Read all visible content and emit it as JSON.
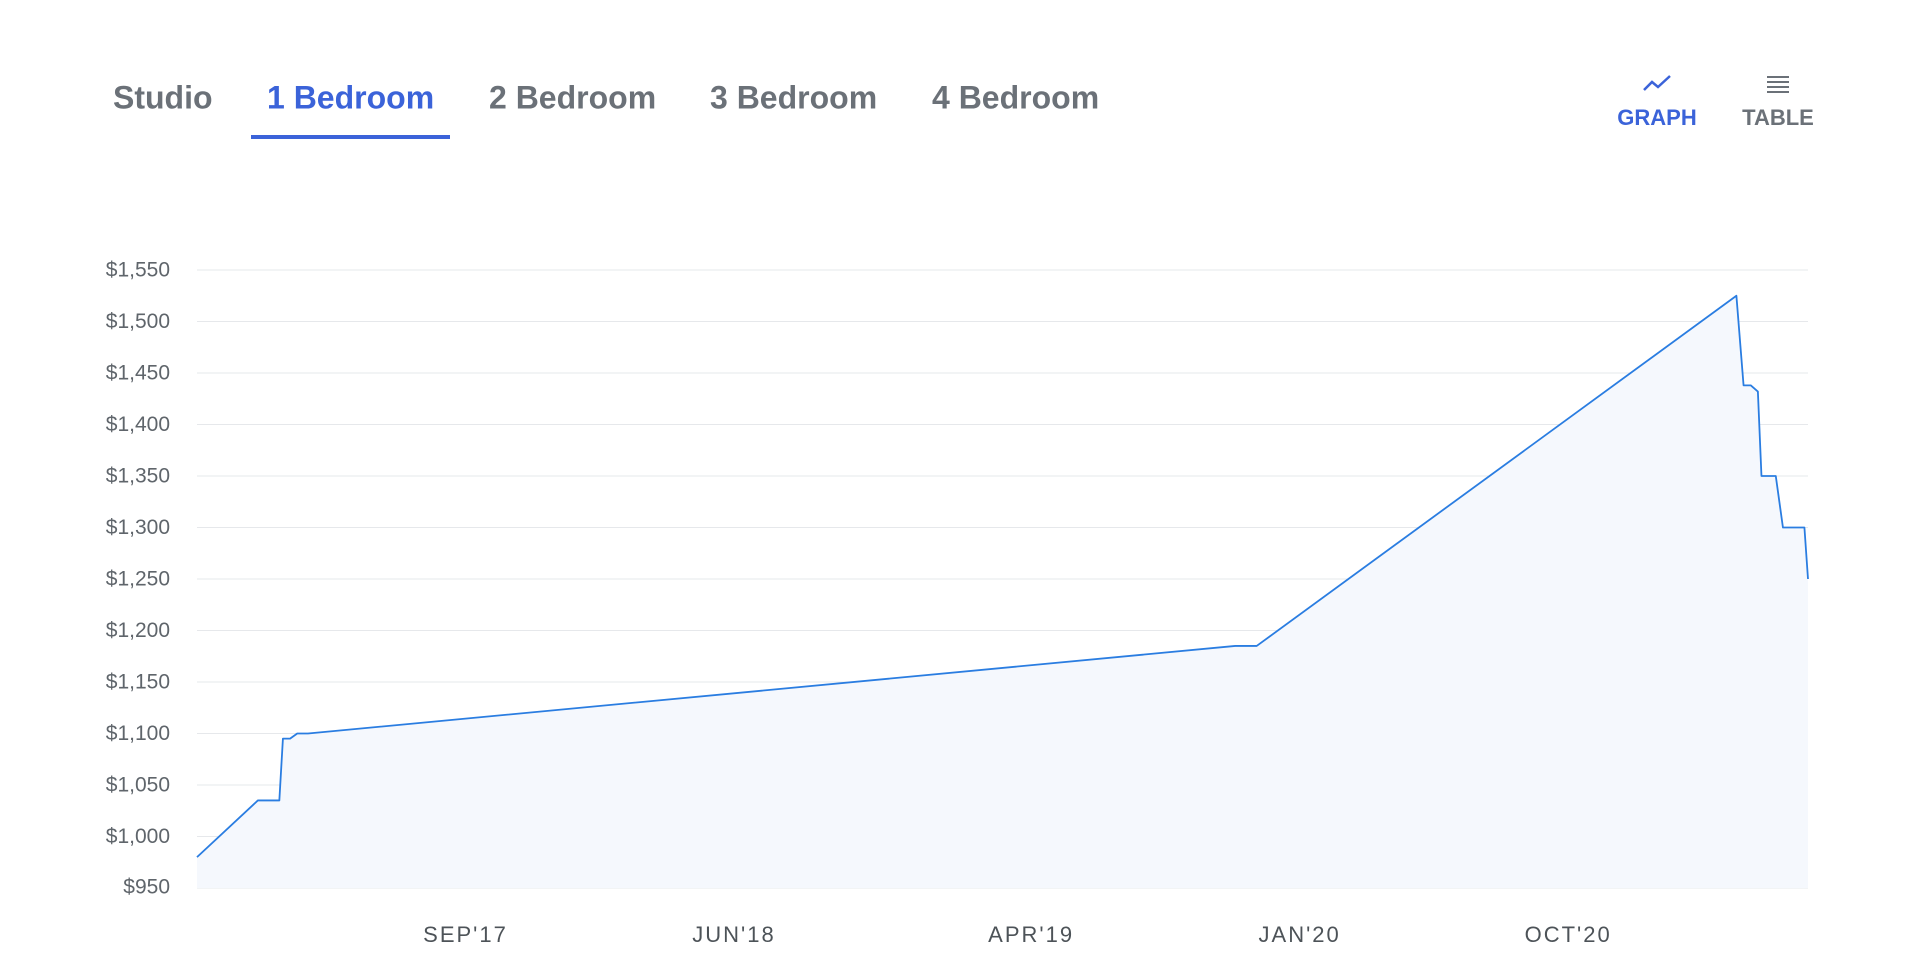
{
  "tabs": [
    "Studio",
    "1 Bedroom",
    "2 Bedroom",
    "3 Bedroom",
    "4 Bedroom"
  ],
  "view_toggle": [
    "GRAPH",
    "TABLE"
  ],
  "chart_data": {
    "type": "line",
    "x": [
      2016.92,
      2017.09,
      2017.15,
      2017.16,
      2017.18,
      2017.2,
      2017.23,
      2019.82,
      2019.88,
      2021.22,
      2021.24,
      2021.26,
      2021.28,
      2021.29,
      2021.33,
      2021.35,
      2021.41,
      2021.42
    ],
    "series": [
      {
        "color": "#2a7de1",
        "values": [
          980,
          1035,
          1035,
          1095,
          1095,
          1100,
          1100,
          1185,
          1185,
          1525,
          1438,
          1438,
          1432,
          1350,
          1350,
          1300,
          1300,
          1250
        ]
      }
    ],
    "xlim": [
      2016.92,
      2021.42
    ],
    "xticks": [
      {
        "value": 2017.67,
        "label": "SEP'17"
      },
      {
        "value": 2018.42,
        "label": "JUN'18"
      },
      {
        "value": 2019.25,
        "label": "APR'19"
      },
      {
        "value": 2020.0,
        "label": "JAN'20"
      },
      {
        "value": 2020.75,
        "label": "OCT'20"
      }
    ],
    "ylim": [
      950,
      1550
    ],
    "yticks": [
      {
        "value": 950,
        "label": "$950"
      },
      {
        "value": 1000,
        "label": "$1,000"
      },
      {
        "value": 1050,
        "label": "$1,050"
      },
      {
        "value": 1100,
        "label": "$1,100"
      },
      {
        "value": 1150,
        "label": "$1,150"
      },
      {
        "value": 1200,
        "label": "$1,200"
      },
      {
        "value": 1250,
        "label": "$1,250"
      },
      {
        "value": 1300,
        "label": "$1,300"
      },
      {
        "value": 1350,
        "label": "$1,350"
      },
      {
        "value": 1400,
        "label": "$1,400"
      },
      {
        "value": 1450,
        "label": "$1,450"
      },
      {
        "value": 1500,
        "label": "$1,500"
      },
      {
        "value": 1550,
        "label": "$1,550"
      }
    ],
    "grid": true
  }
}
